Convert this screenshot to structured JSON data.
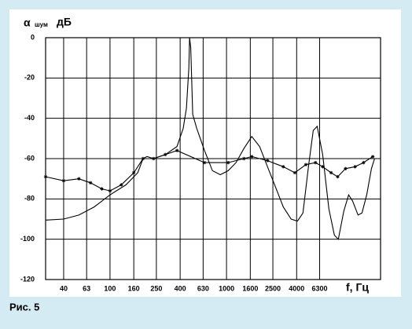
{
  "chart_data": {
    "type": "line",
    "y_label": "α",
    "y_label_sub": "шум",
    "y_unit": "дБ",
    "x_label": "f,  Гц",
    "caption": "Рис. 5",
    "log_x": true,
    "grid": true,
    "xlim": [
      28,
      21000
    ],
    "ylim": [
      -120,
      0
    ],
    "xticks": [
      40,
      63,
      100,
      160,
      250,
      400,
      630,
      1000,
      1600,
      2500,
      4000,
      6300
    ],
    "yticks": [
      0,
      -20,
      -40,
      -60,
      -80,
      -100,
      -120
    ],
    "series": [
      {
        "color": "#000000",
        "markers": false,
        "x": [
          28,
          40,
          54,
          73,
          100,
          137,
          173,
          192,
          208,
          236,
          298,
          376,
          425,
          453,
          475,
          482,
          493,
          513,
          555,
          647,
          757,
          885,
          1033,
          1208,
          1410,
          1648,
          1924,
          2249,
          2630,
          3070,
          3590,
          4065,
          4530,
          5050,
          5550,
          6000,
          6690,
          7570,
          8440,
          9120,
          10170,
          11170,
          12080,
          13460,
          14560,
          15970,
          17540,
          18670
        ],
        "values": [
          -90.5,
          -90,
          -88,
          -84,
          -78,
          -73,
          -67,
          -60,
          -59,
          -60,
          -58,
          -54,
          -45,
          -35,
          -15,
          0,
          -5,
          -38,
          -45,
          -56,
          -66,
          -68,
          -66,
          -62,
          -55,
          -49,
          -54,
          -64,
          -74,
          -84,
          -90,
          -91,
          -87,
          -64,
          -46,
          -44,
          -58,
          -85,
          -98,
          -100,
          -86,
          -78,
          -81,
          -88,
          -87,
          -78,
          -65,
          -60
        ]
      },
      {
        "color": "#000000",
        "markers": true,
        "x": [
          28,
          40,
          54,
          68,
          85,
          100,
          125,
          160,
          192,
          236,
          298,
          376,
          647,
          1033,
          1410,
          1648,
          2249,
          3070,
          3860,
          4800,
          5800,
          6690,
          7900,
          9000,
          10500,
          12700,
          15000,
          18000
        ],
        "values": [
          -69,
          -71,
          -70,
          -72,
          -75,
          -76,
          -73,
          -67,
          -60,
          -60,
          -58,
          -56,
          -62,
          -62,
          -60,
          -59,
          -61,
          -64,
          -67,
          -63,
          -62,
          -64,
          -67,
          -69,
          -65,
          -64,
          -62,
          -59
        ]
      }
    ]
  }
}
